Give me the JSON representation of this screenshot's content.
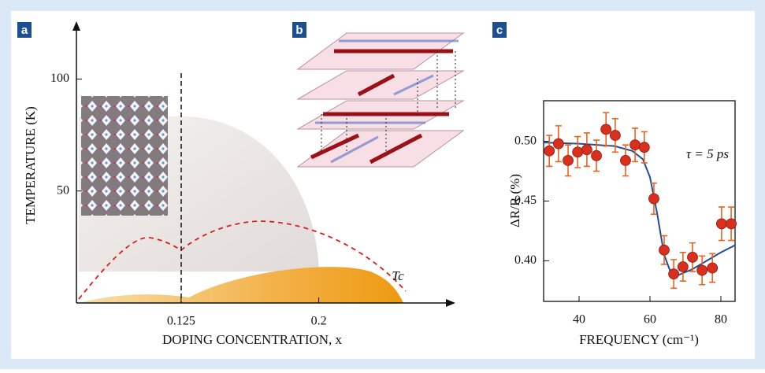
{
  "panels": [
    "a",
    "b",
    "c"
  ],
  "chart_data": [
    {
      "type": "phase",
      "xlabel": "DOPING CONCENTRATION, x",
      "ylabel": "TEMPERATURE (K)",
      "annotation": "Tc",
      "xlim": [
        0.068,
        0.271
      ],
      "ylim": [
        0,
        123
      ],
      "xticks": [
        0.125,
        0.2
      ],
      "yticks": [
        50,
        100
      ]
    },
    {
      "type": "scatter",
      "xlabel": "FREQUENCY (cm⁻¹)",
      "ylabel": "ΔR/R (%)",
      "annotation": "τ = 5 ps",
      "xlim": [
        30,
        84
      ],
      "ylim": [
        0.366,
        0.534
      ],
      "xticks": [
        40,
        60,
        80
      ],
      "yticks": [
        {
          "value": 0.4,
          "label": "0.40"
        },
        0.45,
        {
          "value": 0.5,
          "label": "0.50"
        }
      ],
      "series": [
        {
          "type": "points",
          "color": "#d9301e",
          "x": [
            31.6,
            34.2,
            36.9,
            39.6,
            42.2,
            44.9,
            47.6,
            50.2,
            53.1,
            55.8,
            58.4,
            61.1,
            64.0,
            66.7,
            69.3,
            72.0,
            74.7,
            77.6,
            80.2,
            82.9
          ],
          "values": [
            0.492,
            0.498,
            0.484,
            0.491,
            0.493,
            0.488,
            0.51,
            0.505,
            0.484,
            0.497,
            0.495,
            0.452,
            0.409,
            0.389,
            0.395,
            0.403,
            0.392,
            0.394,
            0.431,
            0.431
          ],
          "errors": [
            0.013,
            0.015,
            0.013,
            0.013,
            0.014,
            0.013,
            0.014,
            0.014,
            0.013,
            0.014,
            0.013,
            0.013,
            0.012,
            0.012,
            0.012,
            0.012,
            0.012,
            0.012,
            0.014,
            0.014
          ]
        },
        {
          "type": "line",
          "color": "#1f4e9a",
          "x": [
            30,
            40,
            50,
            55,
            58,
            60,
            62,
            64,
            66,
            68,
            72,
            76,
            80,
            84
          ],
          "values": [
            0.499,
            0.498,
            0.496,
            0.492,
            0.485,
            0.47,
            0.44,
            0.405,
            0.389,
            0.388,
            0.393,
            0.4,
            0.407,
            0.413
          ]
        }
      ]
    }
  ]
}
